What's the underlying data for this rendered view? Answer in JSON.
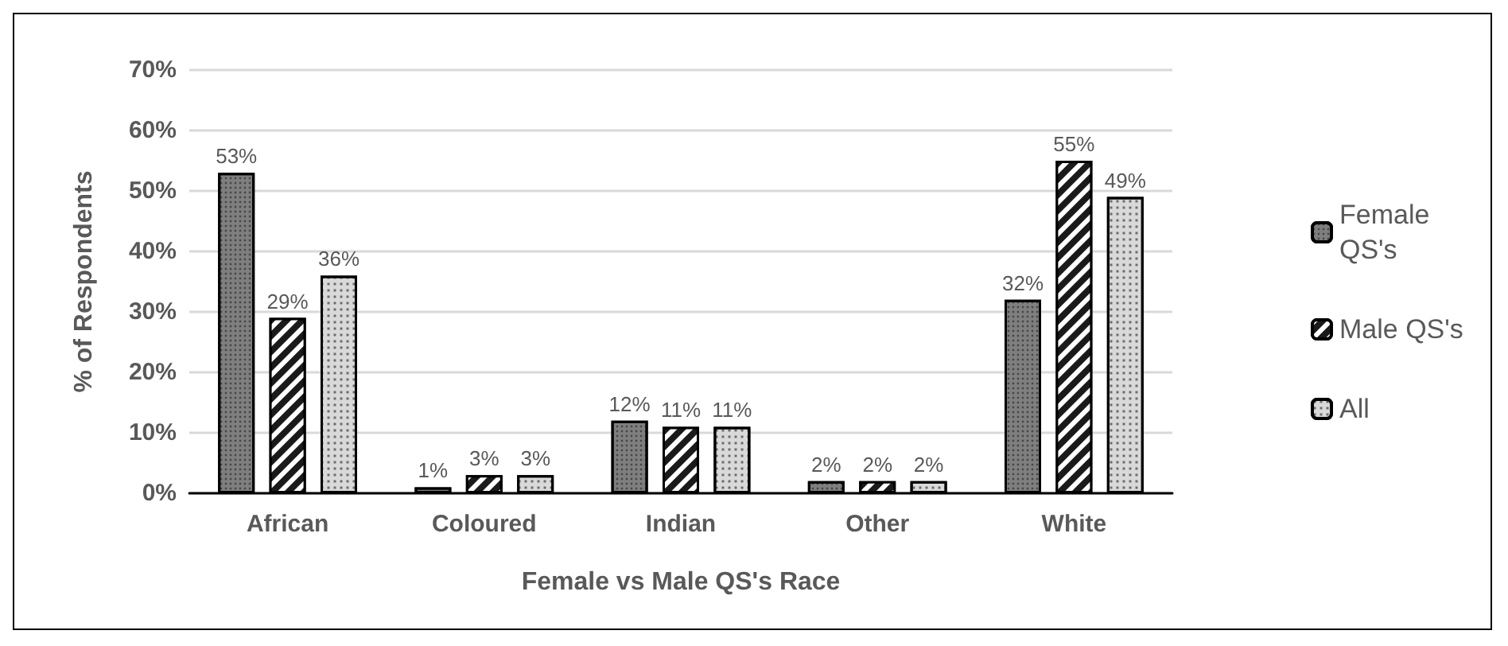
{
  "chart_data": {
    "type": "bar",
    "xlabel": "Female vs Male QS's Race",
    "ylabel": "% of Respondents",
    "categories": [
      "African",
      "Coloured",
      "Indian",
      "Other",
      "White"
    ],
    "series": [
      {
        "name": "Female QS's",
        "color": "#7f7f7f",
        "values": [
          53,
          1,
          12,
          2,
          32
        ],
        "value_labels": [
          "53%",
          "1%",
          "12%",
          "2%",
          "32%"
        ]
      },
      {
        "name": "Male QS's",
        "color": "#1a1a1a",
        "values": [
          29,
          3,
          11,
          2,
          55
        ],
        "value_labels": [
          "29%",
          "3%",
          "11%",
          "2%",
          "55%"
        ]
      },
      {
        "name": "All",
        "color": "#d9d9d9",
        "values": [
          36,
          3,
          11,
          2,
          49
        ],
        "value_labels": [
          "36%",
          "3%",
          "11%",
          "2%",
          "49%"
        ]
      }
    ],
    "ylim": [
      0,
      70
    ],
    "yticks": [
      {
        "value": 0,
        "label": "0%"
      },
      {
        "value": 10,
        "label": "10%"
      },
      {
        "value": 20,
        "label": "20%"
      },
      {
        "value": 30,
        "label": "30%"
      },
      {
        "value": 40,
        "label": "40%"
      },
      {
        "value": 50,
        "label": "50%"
      },
      {
        "value": 60,
        "label": "60%"
      },
      {
        "value": 70,
        "label": "70%"
      }
    ],
    "grid": "y",
    "legend": "right"
  }
}
